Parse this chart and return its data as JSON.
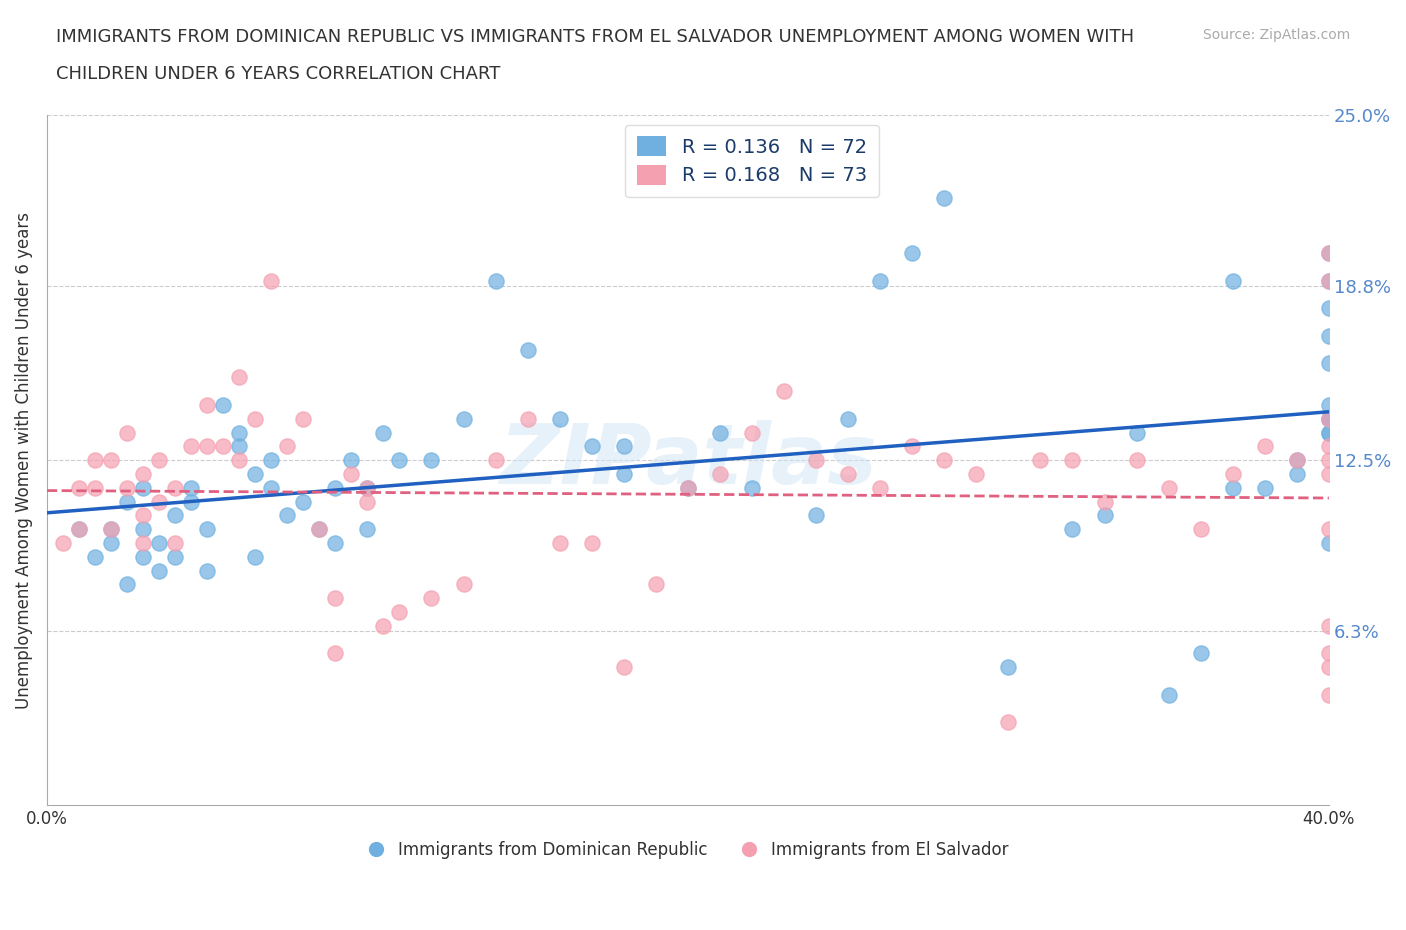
{
  "title_line1": "IMMIGRANTS FROM DOMINICAN REPUBLIC VS IMMIGRANTS FROM EL SALVADOR UNEMPLOYMENT AMONG WOMEN WITH",
  "title_line2": "CHILDREN UNDER 6 YEARS CORRELATION CHART",
  "source": "Source: ZipAtlas.com",
  "xlabel": "",
  "ylabel": "Unemployment Among Women with Children Under 6 years",
  "xlim": [
    0.0,
    0.4
  ],
  "ylim": [
    0.0,
    0.25
  ],
  "yticks": [
    0.0,
    0.063,
    0.125,
    0.188,
    0.25
  ],
  "ytick_labels": [
    "",
    "6.3%",
    "12.5%",
    "18.8%",
    "25.0%"
  ],
  "xtick_labels": [
    "0.0%",
    "40.0%"
  ],
  "xticks": [
    0.0,
    0.4
  ],
  "gridline_y": [
    0.063,
    0.125,
    0.188,
    0.25
  ],
  "blue_color": "#6fb0e0",
  "pink_color": "#f4a0b0",
  "blue_line_color": "#2060c0",
  "pink_line_color": "#e06080",
  "watermark": "ZIPatlas",
  "legend_blue_R": "0.136",
  "legend_blue_N": "72",
  "legend_pink_R": "0.168",
  "legend_pink_N": "73",
  "blue_scatter_x": [
    0.01,
    0.015,
    0.02,
    0.02,
    0.025,
    0.025,
    0.03,
    0.03,
    0.03,
    0.035,
    0.035,
    0.04,
    0.04,
    0.045,
    0.045,
    0.05,
    0.05,
    0.055,
    0.06,
    0.06,
    0.065,
    0.065,
    0.07,
    0.07,
    0.075,
    0.08,
    0.085,
    0.09,
    0.09,
    0.095,
    0.1,
    0.1,
    0.105,
    0.11,
    0.12,
    0.13,
    0.14,
    0.15,
    0.16,
    0.17,
    0.18,
    0.18,
    0.2,
    0.21,
    0.22,
    0.24,
    0.25,
    0.26,
    0.27,
    0.28,
    0.3,
    0.32,
    0.33,
    0.34,
    0.35,
    0.36,
    0.37,
    0.37,
    0.38,
    0.39,
    0.39,
    0.4,
    0.4,
    0.4,
    0.4,
    0.4,
    0.4,
    0.4,
    0.4,
    0.4,
    0.4,
    0.4
  ],
  "blue_scatter_y": [
    0.1,
    0.09,
    0.095,
    0.1,
    0.08,
    0.11,
    0.09,
    0.1,
    0.115,
    0.085,
    0.095,
    0.09,
    0.105,
    0.11,
    0.115,
    0.085,
    0.1,
    0.145,
    0.13,
    0.135,
    0.09,
    0.12,
    0.115,
    0.125,
    0.105,
    0.11,
    0.1,
    0.095,
    0.115,
    0.125,
    0.1,
    0.115,
    0.135,
    0.125,
    0.125,
    0.14,
    0.19,
    0.165,
    0.14,
    0.13,
    0.12,
    0.13,
    0.115,
    0.135,
    0.115,
    0.105,
    0.14,
    0.19,
    0.2,
    0.22,
    0.05,
    0.1,
    0.105,
    0.135,
    0.04,
    0.055,
    0.115,
    0.19,
    0.115,
    0.12,
    0.125,
    0.135,
    0.14,
    0.17,
    0.18,
    0.095,
    0.135,
    0.14,
    0.145,
    0.16,
    0.19,
    0.2
  ],
  "pink_scatter_x": [
    0.005,
    0.01,
    0.01,
    0.015,
    0.015,
    0.02,
    0.02,
    0.025,
    0.025,
    0.03,
    0.03,
    0.03,
    0.035,
    0.035,
    0.04,
    0.04,
    0.045,
    0.05,
    0.05,
    0.055,
    0.06,
    0.06,
    0.065,
    0.07,
    0.075,
    0.08,
    0.085,
    0.09,
    0.09,
    0.095,
    0.1,
    0.1,
    0.105,
    0.11,
    0.12,
    0.13,
    0.14,
    0.15,
    0.16,
    0.17,
    0.18,
    0.19,
    0.2,
    0.21,
    0.22,
    0.23,
    0.24,
    0.25,
    0.26,
    0.27,
    0.28,
    0.29,
    0.3,
    0.31,
    0.32,
    0.33,
    0.34,
    0.35,
    0.36,
    0.37,
    0.38,
    0.39,
    0.4,
    0.4,
    0.4,
    0.4,
    0.4,
    0.4,
    0.4,
    0.4,
    0.4,
    0.4,
    0.4
  ],
  "pink_scatter_y": [
    0.095,
    0.1,
    0.115,
    0.125,
    0.115,
    0.1,
    0.125,
    0.115,
    0.135,
    0.095,
    0.105,
    0.12,
    0.11,
    0.125,
    0.095,
    0.115,
    0.13,
    0.13,
    0.145,
    0.13,
    0.125,
    0.155,
    0.14,
    0.19,
    0.13,
    0.14,
    0.1,
    0.055,
    0.075,
    0.12,
    0.11,
    0.115,
    0.065,
    0.07,
    0.075,
    0.08,
    0.125,
    0.14,
    0.095,
    0.095,
    0.05,
    0.08,
    0.115,
    0.12,
    0.135,
    0.15,
    0.125,
    0.12,
    0.115,
    0.13,
    0.125,
    0.12,
    0.03,
    0.125,
    0.125,
    0.11,
    0.125,
    0.115,
    0.1,
    0.12,
    0.13,
    0.125,
    0.04,
    0.05,
    0.055,
    0.065,
    0.1,
    0.12,
    0.125,
    0.13,
    0.14,
    0.19,
    0.2
  ]
}
